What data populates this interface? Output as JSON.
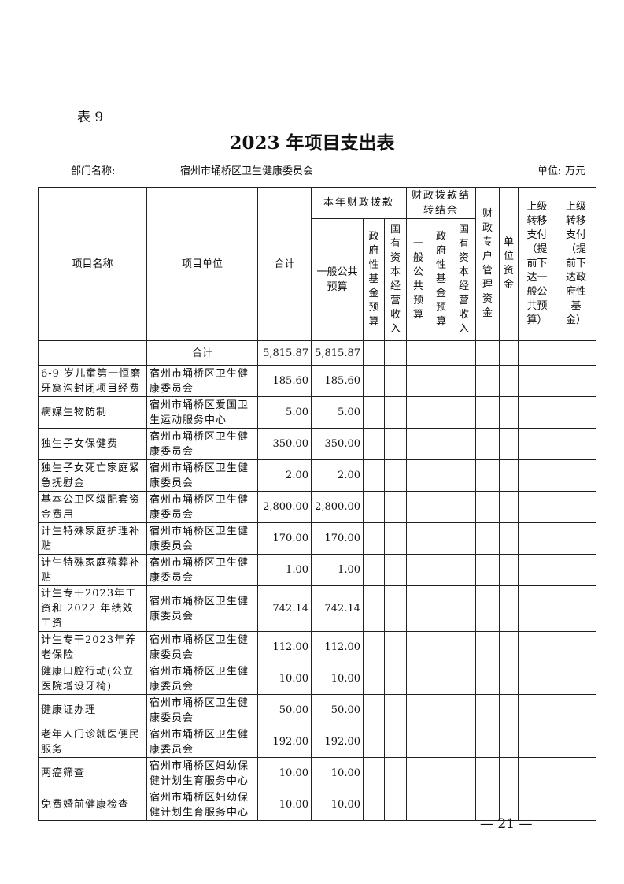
{
  "table_no": "表 9",
  "title": "2023 年项目支出表",
  "dept_label": "部门名称:",
  "dept_name": "宿州市埇桥区卫生健康委员会",
  "unit_label": "单位:",
  "unit_value": "万元",
  "headers": {
    "name": "项目名称",
    "unit": "项目单位",
    "total": "合计",
    "current_group": "本年财政拨款",
    "carry_group": "财政拨款结转结余",
    "general": "一般公共预算",
    "gov_fund": "政府性基金预算",
    "state_capital": "国有资本经营收入",
    "carry_general": "一般公共预算",
    "carry_gov_fund": "政府性基金预算",
    "carry_state_capital": "国有资本经营收入",
    "special": "财政专户管理资金",
    "own": "单位资金",
    "transfer_general": "上级转移支付（提前下达一般公共预算）",
    "transfer_fund": "上级转移支付（提前下达政府性基金）"
  },
  "total_row": {
    "label": "合计",
    "total": "5,815.87",
    "general": "5,815.87"
  },
  "rows": [
    {
      "name": "6-9 岁儿童第一恒磨牙窝沟封闭项目经费",
      "unit": "宿州市埇桥区卫生健康委员会",
      "total": "185.60",
      "general": "185.60"
    },
    {
      "name": "病媒生物防制",
      "unit": "宿州市埇桥区爱国卫生运动服务中心",
      "total": "5.00",
      "general": "5.00"
    },
    {
      "name": "独生子女保健费",
      "unit": "宿州市埇桥区卫生健康委员会",
      "total": "350.00",
      "general": "350.00"
    },
    {
      "name": "独生子女死亡家庭紧急抚慰金",
      "unit": "宿州市埇桥区卫生健康委员会",
      "total": "2.00",
      "general": "2.00"
    },
    {
      "name": "基本公卫区级配套资金费用",
      "unit": "宿州市埇桥区卫生健康委员会",
      "total": "2,800.00",
      "general": "2,800.00"
    },
    {
      "name": "计生特殊家庭护理补贴",
      "unit": "宿州市埇桥区卫生健康委员会",
      "total": "170.00",
      "general": "170.00"
    },
    {
      "name": "计生特殊家庭殡葬补贴",
      "unit": "宿州市埇桥区卫生健康委员会",
      "total": "1.00",
      "general": "1.00"
    },
    {
      "name": "计生专干2023年工资和 2022 年绩效工资",
      "unit": "宿州市埇桥区卫生健康委员会",
      "total": "742.14",
      "general": "742.14"
    },
    {
      "name": "计生专干2023年养老保险",
      "unit": "宿州市埇桥区卫生健康委员会",
      "total": "112.00",
      "general": "112.00"
    },
    {
      "name": "健康口腔行动(公立医院增设牙椅)",
      "unit": "宿州市埇桥区卫生健康委员会",
      "total": "10.00",
      "general": "10.00"
    },
    {
      "name": "健康证办理",
      "unit": "宿州市埇桥区卫生健康委员会",
      "total": "50.00",
      "general": "50.00"
    },
    {
      "name": "老年人门诊就医便民服务",
      "unit": "宿州市埇桥区卫生健康委员会",
      "total": "192.00",
      "general": "192.00"
    },
    {
      "name": "两癌筛查",
      "unit": "宿州市埇桥区妇幼保健计划生育服务中心",
      "total": "10.00",
      "general": "10.00"
    },
    {
      "name": "免费婚前健康检查",
      "unit": "宿州市埇桥区妇幼保健计划生育服务中心",
      "total": "10.00",
      "general": "10.00"
    }
  ],
  "page_number": "— 21 —"
}
